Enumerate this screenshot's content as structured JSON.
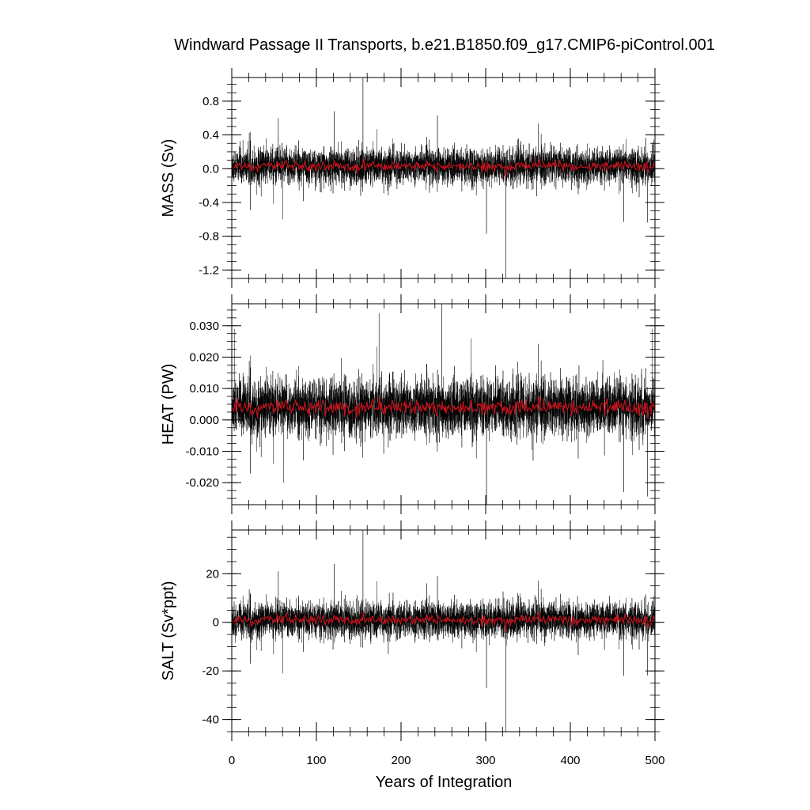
{
  "chart_data": {
    "type": "line",
    "title": "Windward Passage II Transports, b.e21.B1850.f09_g17.CMIP6-piControl.001",
    "xlabel": "Years of Integration",
    "xlim": [
      0,
      500
    ],
    "xticks": [
      "0",
      "100",
      "200",
      "300",
      "400",
      "500"
    ],
    "legend": "none",
    "grid": false,
    "series_colors": {
      "monthly": "#000000",
      "annual": "#c8141e"
    },
    "panels": [
      {
        "id": "mass",
        "ylabel": "MASS (Sv)",
        "ylim": [
          -1.3,
          1.08
        ],
        "yticks": [
          0.8,
          0.4,
          0.0,
          -0.4,
          -0.8,
          -1.2
        ],
        "ytick_labels": [
          "0.8",
          "0.4",
          "0.0",
          "-0.4",
          "-0.8",
          "-1.2"
        ],
        "approx_mean": 0.03,
        "approx_monthly_spread": 0.13,
        "spikes": [
          {
            "x": 155,
            "y": 1.08
          },
          {
            "x": 324,
            "y": -1.3
          },
          {
            "x": 301,
            "y": -0.77
          },
          {
            "x": 55,
            "y": 0.6
          },
          {
            "x": 121,
            "y": 0.68
          },
          {
            "x": 60,
            "y": -0.6
          },
          {
            "x": 243,
            "y": 0.63
          },
          {
            "x": 463,
            "y": -0.63
          },
          {
            "x": 22,
            "y": -0.49
          }
        ]
      },
      {
        "id": "heat",
        "ylabel": "HEAT (PW)",
        "ylim": [
          -0.027,
          0.037
        ],
        "yticks": [
          0.03,
          0.02,
          0.01,
          0.0,
          -0.01,
          -0.02
        ],
        "ytick_labels": [
          "0.030",
          "0.020",
          "0.010",
          "0.000",
          "-0.010",
          "-0.020"
        ],
        "approx_mean": 0.004,
        "approx_monthly_spread": 0.0055,
        "spikes": [
          {
            "x": 248,
            "y": 0.037
          },
          {
            "x": 174,
            "y": 0.034
          },
          {
            "x": 301,
            "y": -0.027
          },
          {
            "x": 3,
            "y": 0.029
          },
          {
            "x": 463,
            "y": -0.023
          },
          {
            "x": 61,
            "y": -0.02
          },
          {
            "x": 283,
            "y": 0.026
          },
          {
            "x": 497,
            "y": 0.029
          },
          {
            "x": 22,
            "y": -0.017
          }
        ]
      },
      {
        "id": "salt",
        "ylabel": "SALT (Sv*ppt)",
        "ylim": [
          -45,
          38
        ],
        "yticks": [
          20,
          0,
          -20,
          -40
        ],
        "ytick_labels": [
          "20",
          "0",
          "-20",
          "-40"
        ],
        "approx_mean": 1.0,
        "approx_monthly_spread": 4.5,
        "spikes": [
          {
            "x": 155,
            "y": 38
          },
          {
            "x": 324,
            "y": -45
          },
          {
            "x": 301,
            "y": -27
          },
          {
            "x": 121,
            "y": 24
          },
          {
            "x": 55,
            "y": 21
          },
          {
            "x": 60,
            "y": -21
          },
          {
            "x": 463,
            "y": -22
          },
          {
            "x": 22,
            "y": -17
          },
          {
            "x": 243,
            "y": 19
          }
        ]
      }
    ]
  }
}
